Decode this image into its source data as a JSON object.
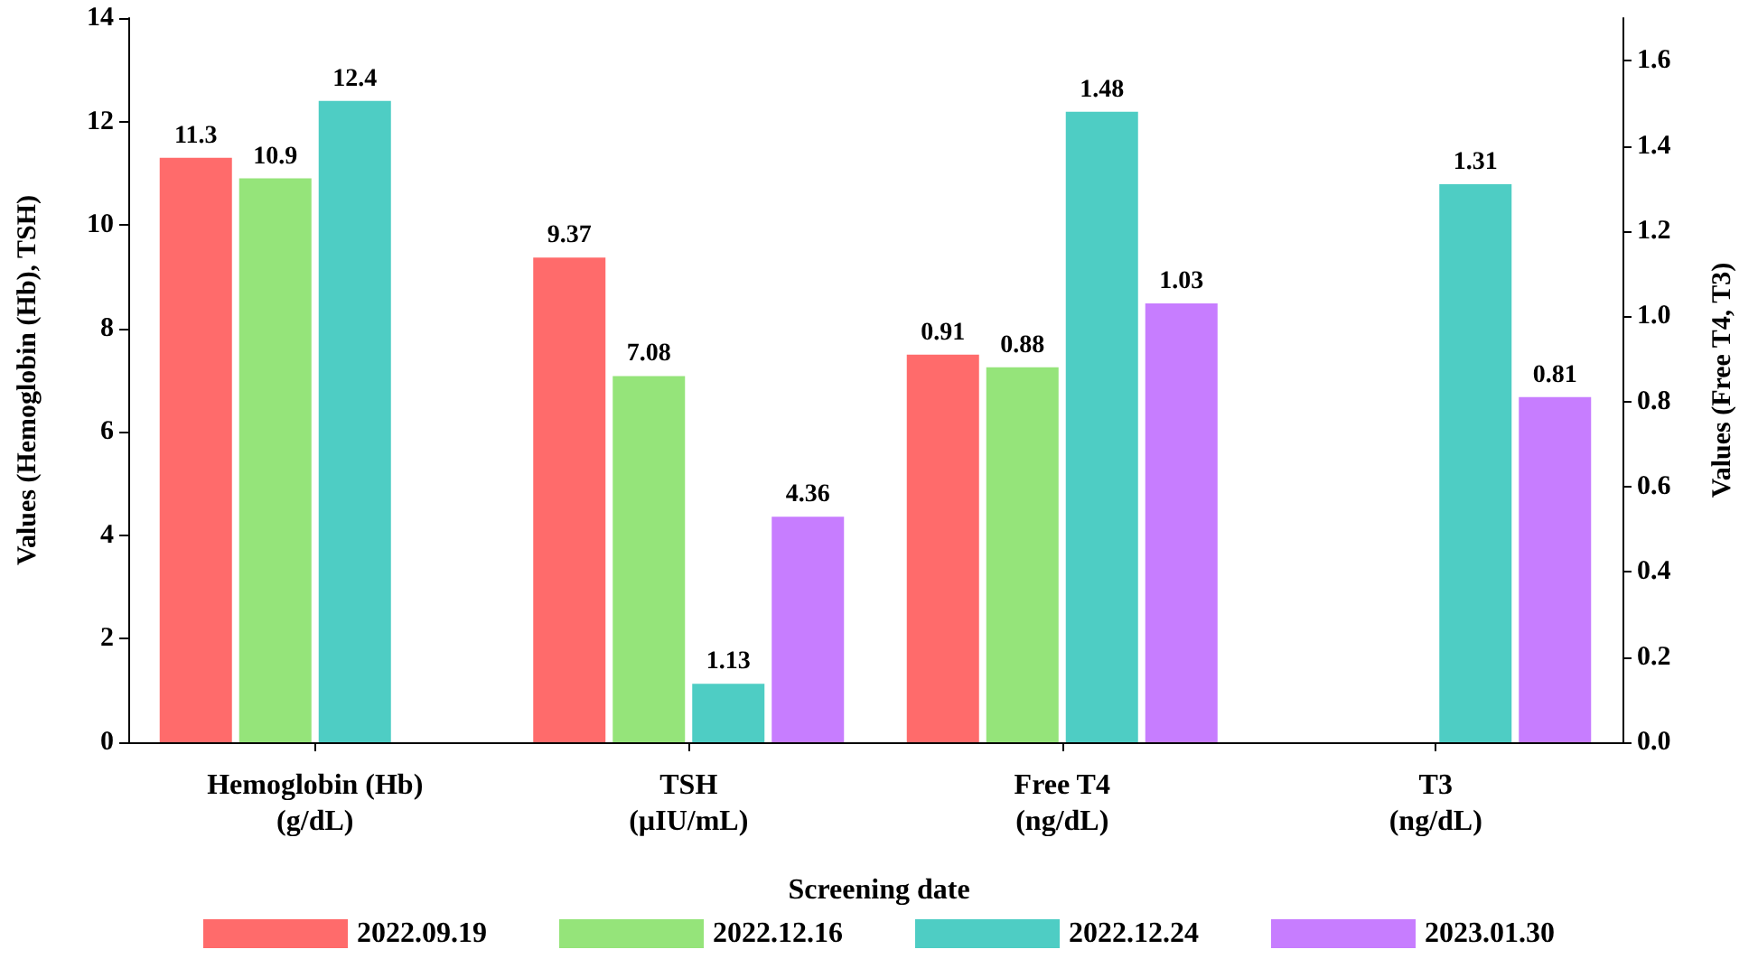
{
  "chart_data": {
    "type": "bar",
    "categories": [
      "Hemoglobin (Hb)\n(g/dL)",
      "TSH\n(µIU/mL)",
      "Free T4\n(ng/dL)",
      "T3\n(ng/dL)"
    ],
    "series": [
      {
        "name": "2022.09.19",
        "color": "#ff6b6b",
        "axis": "y",
        "values": [
          11.3,
          9.37,
          null,
          null
        ]
      },
      {
        "name": "2022.12.16",
        "color": "#95e47a",
        "axis": "y",
        "values": [
          10.9,
          7.08,
          null,
          null
        ]
      },
      {
        "name": "2022.12.24",
        "color": "#4ecdc4",
        "axis": "y",
        "values": [
          12.4,
          1.13,
          null,
          null
        ]
      },
      {
        "name": "2023.01.30",
        "color": "#c77dff",
        "axis": "y",
        "values": [
          null,
          4.36,
          null,
          null
        ]
      },
      {
        "color": "#ff6b6b",
        "axis": "y2",
        "values": [
          null,
          null,
          0.91,
          null
        ]
      },
      {
        "color": "#95e47a",
        "axis": "y2",
        "values": [
          null,
          null,
          0.88,
          null
        ]
      },
      {
        "color": "#4ecdc4",
        "axis": "y2",
        "values": [
          null,
          null,
          1.48,
          1.31
        ]
      },
      {
        "color": "#c77dff",
        "axis": "y2",
        "values": [
          null,
          null,
          1.03,
          0.81
        ]
      }
    ],
    "ylabel": "Values (Hemoglobin (Hb), TSH)",
    "y2label": "Values (Free T4, T3)",
    "legend_title": "Screening date",
    "ylim": [
      0,
      14
    ],
    "yticks": [
      0,
      2,
      4,
      6,
      8,
      10,
      12,
      14
    ],
    "y2lim": [
      0,
      1.7
    ],
    "y2ticks": [
      {
        "value": 0,
        "label": "0.0"
      },
      {
        "value": 0.2,
        "label": "0.2"
      },
      {
        "value": 0.4,
        "label": "0.4"
      },
      {
        "value": 0.6,
        "label": "0.6"
      },
      {
        "value": 0.8,
        "label": "0.8"
      },
      {
        "value": 1,
        "label": "1.0"
      },
      {
        "value": 1.2,
        "label": "1.2"
      },
      {
        "value": 1.4,
        "label": "1.4"
      },
      {
        "value": 1.6,
        "label": "1.6"
      }
    ],
    "data_labels": true,
    "grid": false,
    "legend": "bottom"
  }
}
